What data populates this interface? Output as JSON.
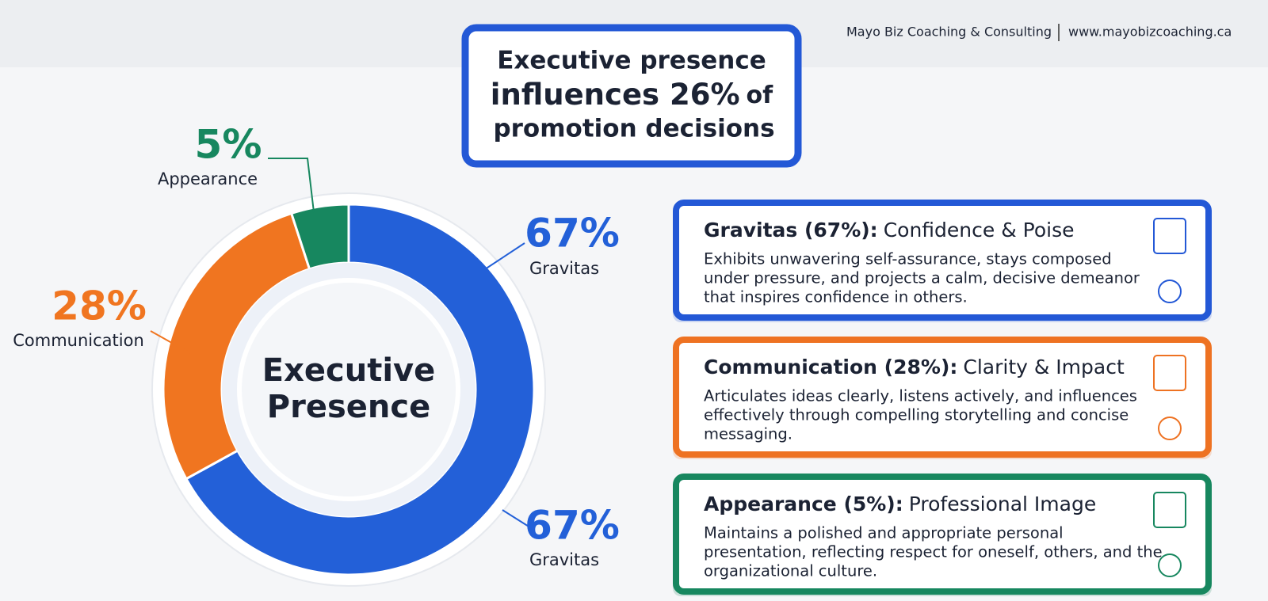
{
  "header": {
    "company": "Mayo Biz Coaching & Consulting",
    "website": "www.mayobizcoaching.ca"
  },
  "headline": {
    "line1": "Executive presence",
    "line2_main": "influences 26%",
    "line2_tail": "of",
    "line3": "promotion decisions"
  },
  "chart_data": {
    "type": "donut",
    "center_label": [
      "Executive",
      "Presence"
    ],
    "categories": [
      "Gravitas",
      "Communication",
      "Appearance"
    ],
    "values": [
      67,
      28,
      5
    ],
    "value_labels": [
      "67%",
      "28%",
      "5%"
    ],
    "colors": [
      "#2360d8",
      "#f07520",
      "#17875f"
    ],
    "annotations": [
      {
        "value_label": "67%",
        "label": "Gravitas"
      }
    ]
  },
  "cards": [
    {
      "title_bold": "Gravitas (67%):",
      "title_rest": "Confidence & Poise",
      "color": "#2358d6",
      "body": [
        "Exhibits unwavering self-assurance, stays composed",
        "under pressure, and projects a calm, decisive demeanor",
        "that inspires confidence in others."
      ]
    },
    {
      "title_bold": "Communication (28%):",
      "title_rest": "Clarity & Impact",
      "color": "#ee7222",
      "body": [
        "Articulates ideas clearly, listens actively, and influences",
        "effectively through compelling storytelling and concise",
        "messaging."
      ]
    },
    {
      "title_bold": "Appearance (5%):",
      "title_rest": "Professional Image",
      "color": "#17875f",
      "body": [
        "Maintains a polished and appropriate personal",
        "presentation, reflecting respect for oneself, others, and the",
        "organizational culture."
      ]
    }
  ]
}
